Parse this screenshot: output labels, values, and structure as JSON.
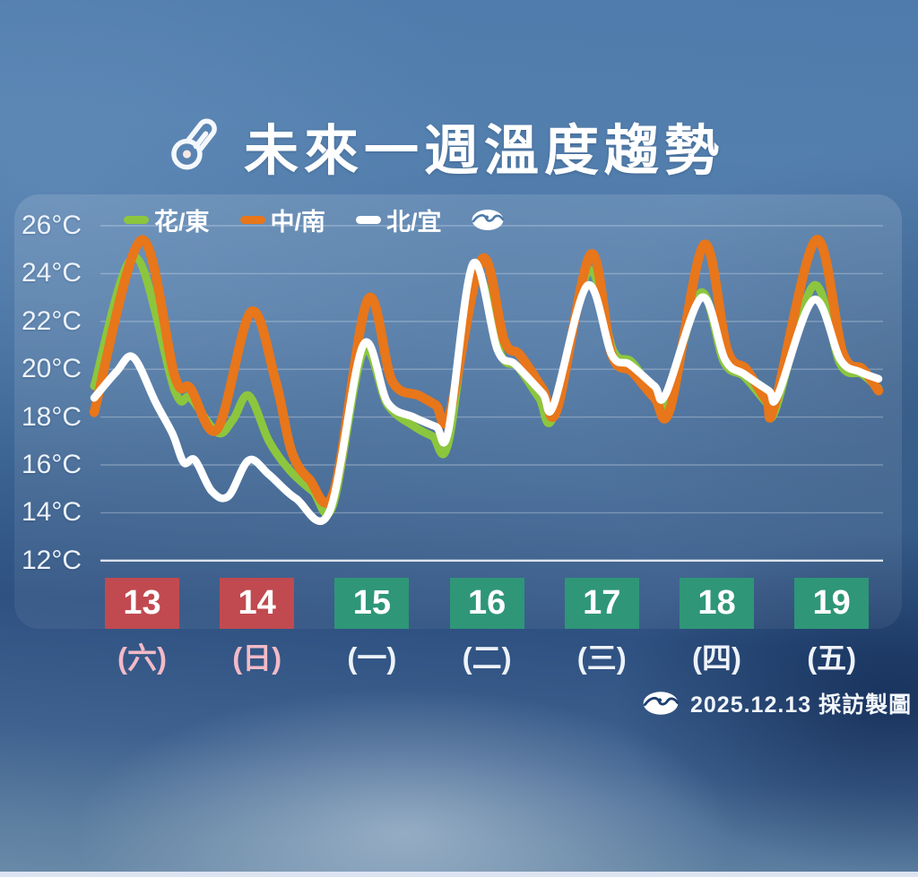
{
  "title": {
    "text": "未來一週溫度趨勢",
    "icon": "thermometer-icon"
  },
  "icons": {
    "title_icon": "thermometer-icon",
    "legend_logo": "broadcaster-logo-icon",
    "footer_logo": "broadcaster-logo-icon"
  },
  "footer": {
    "credit": "2025.12.13 採訪製圖"
  },
  "colors": {
    "line_green": "#8cc63e",
    "line_orange": "#e8761a",
    "line_white": "#ffffff",
    "box_weekend_red": "#c04a50",
    "box_weekday_green": "#2f9678",
    "weekend_label_pink": "#f3bac7",
    "weekday_label_white": "#eef3fa"
  },
  "chart_data": {
    "type": "line",
    "title": "未來一週溫度趨勢",
    "ylabel": "°C",
    "ylim": [
      12,
      26
    ],
    "grid": "horizontal",
    "legend_position": "top-left",
    "y_ticks": [
      26,
      24,
      22,
      20,
      18,
      16,
      14,
      12
    ],
    "y_tick_labels": [
      "26°C",
      "24°C",
      "22°C",
      "20°C",
      "18°C",
      "16°C",
      "14°C",
      "12°C"
    ],
    "x_unit": "day_fraction_from_dec13",
    "x_days": [
      {
        "date": "13",
        "weekday": "(六)",
        "is_weekend": true
      },
      {
        "date": "14",
        "weekday": "(日)",
        "is_weekend": true
      },
      {
        "date": "15",
        "weekday": "(一)",
        "is_weekend": false
      },
      {
        "date": "16",
        "weekday": "(二)",
        "is_weekend": false
      },
      {
        "date": "17",
        "weekday": "(三)",
        "is_weekend": false
      },
      {
        "date": "18",
        "weekday": "(四)",
        "is_weekend": false
      },
      {
        "date": "19",
        "weekday": "(五)",
        "is_weekend": false
      }
    ],
    "series": [
      {
        "id": "hua-dong",
        "name": "花/東",
        "color": "#8cc63e",
        "stroke_width": 9,
        "points": [
          [
            0,
            19.3
          ],
          [
            0.36,
            24.7
          ],
          [
            0.72,
            19.1
          ],
          [
            0.86,
            18.8
          ],
          [
            1.1,
            17.35
          ],
          [
            1.24,
            17.9
          ],
          [
            1.38,
            18.9
          ],
          [
            1.56,
            17.0
          ],
          [
            1.74,
            15.8
          ],
          [
            1.95,
            14.9
          ],
          [
            2.13,
            14.3
          ],
          [
            2.4,
            20.7
          ],
          [
            2.62,
            18.5
          ],
          [
            2.86,
            17.6
          ],
          [
            3.02,
            17.2
          ],
          [
            3.16,
            16.9
          ],
          [
            3.4,
            23.9
          ],
          [
            3.63,
            20.6
          ],
          [
            3.78,
            20.1
          ],
          [
            3.97,
            18.8
          ],
          [
            4.1,
            18.05
          ],
          [
            4.41,
            24.1
          ],
          [
            4.63,
            20.8
          ],
          [
            4.8,
            20.3
          ],
          [
            5.0,
            19.0
          ],
          [
            5.12,
            18.7
          ],
          [
            5.41,
            23.2
          ],
          [
            5.62,
            20.3
          ],
          [
            5.8,
            19.7
          ],
          [
            6.0,
            18.6
          ],
          [
            6.08,
            18.3
          ],
          [
            6.42,
            23.5
          ],
          [
            6.66,
            20.2
          ],
          [
            6.85,
            19.8
          ],
          [
            7,
            19.2
          ]
        ]
      },
      {
        "id": "zhong-nan",
        "name": "中/南",
        "color": "#e8761a",
        "stroke_width": 10.5,
        "points": [
          [
            0,
            18.2
          ],
          [
            0.42,
            25.4
          ],
          [
            0.72,
            19.7
          ],
          [
            0.86,
            19.2
          ],
          [
            1.1,
            17.5
          ],
          [
            1.4,
            22.4
          ],
          [
            1.62,
            19.5
          ],
          [
            1.76,
            16.6
          ],
          [
            1.92,
            15.4
          ],
          [
            2.14,
            14.9
          ],
          [
            2.44,
            22.9
          ],
          [
            2.66,
            19.5
          ],
          [
            2.9,
            18.9
          ],
          [
            3.05,
            18.5
          ],
          [
            3.17,
            18.1
          ],
          [
            3.46,
            24.6
          ],
          [
            3.66,
            21.2
          ],
          [
            3.8,
            20.6
          ],
          [
            4.0,
            19.2
          ],
          [
            4.13,
            18.3
          ],
          [
            4.43,
            24.8
          ],
          [
            4.62,
            20.6
          ],
          [
            4.8,
            19.9
          ],
          [
            5.0,
            18.8
          ],
          [
            5.14,
            18.35
          ],
          [
            5.44,
            25.2
          ],
          [
            5.65,
            20.8
          ],
          [
            5.82,
            20.0
          ],
          [
            6.0,
            18.7
          ],
          [
            6.07,
            18.45
          ],
          [
            6.44,
            25.4
          ],
          [
            6.68,
            20.7
          ],
          [
            6.86,
            20.0
          ],
          [
            7,
            19.1
          ]
        ]
      },
      {
        "id": "bei-yi",
        "name": "北/宜",
        "color": "#ffffff",
        "stroke_width": 8.5,
        "points": [
          [
            0,
            18.8
          ],
          [
            0.2,
            19.9
          ],
          [
            0.35,
            20.5
          ],
          [
            0.55,
            18.6
          ],
          [
            0.7,
            17.3
          ],
          [
            0.8,
            16.1
          ],
          [
            0.9,
            16.2
          ],
          [
            1.05,
            14.9
          ],
          [
            1.2,
            14.7
          ],
          [
            1.38,
            16.2
          ],
          [
            1.56,
            15.6
          ],
          [
            1.8,
            14.6
          ],
          [
            2.1,
            14.05
          ],
          [
            2.4,
            21.0
          ],
          [
            2.62,
            18.6
          ],
          [
            2.85,
            18.0
          ],
          [
            3.05,
            17.6
          ],
          [
            3.16,
            17.4
          ],
          [
            3.38,
            24.4
          ],
          [
            3.6,
            20.8
          ],
          [
            3.76,
            20.2
          ],
          [
            4.0,
            19.0
          ],
          [
            4.1,
            18.5
          ],
          [
            4.4,
            23.5
          ],
          [
            4.62,
            20.6
          ],
          [
            4.78,
            20.2
          ],
          [
            5.0,
            19.3
          ],
          [
            5.1,
            18.95
          ],
          [
            5.42,
            23.0
          ],
          [
            5.63,
            20.4
          ],
          [
            5.8,
            19.8
          ],
          [
            6.02,
            19.1
          ],
          [
            6.1,
            18.9
          ],
          [
            6.42,
            22.9
          ],
          [
            6.66,
            20.4
          ],
          [
            6.83,
            19.9
          ],
          [
            7,
            19.6
          ]
        ]
      }
    ]
  }
}
